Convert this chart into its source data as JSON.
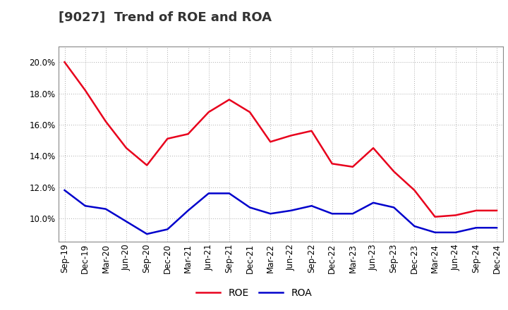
{
  "title": "[9027]  Trend of ROE and ROA",
  "x_labels": [
    "Sep-19",
    "Dec-19",
    "Mar-20",
    "Jun-20",
    "Sep-20",
    "Dec-20",
    "Mar-21",
    "Jun-21",
    "Sep-21",
    "Dec-21",
    "Mar-22",
    "Jun-22",
    "Sep-22",
    "Dec-22",
    "Mar-23",
    "Jun-23",
    "Sep-23",
    "Dec-23",
    "Mar-24",
    "Jun-24",
    "Sep-24",
    "Dec-24"
  ],
  "roe": [
    20.0,
    18.2,
    16.2,
    14.5,
    13.4,
    15.1,
    15.4,
    16.8,
    17.6,
    16.8,
    14.9,
    15.3,
    15.6,
    13.5,
    13.3,
    14.5,
    13.0,
    11.8,
    10.1,
    10.2,
    10.5,
    10.5
  ],
  "roa": [
    11.8,
    10.8,
    10.6,
    9.8,
    9.0,
    9.3,
    10.5,
    11.6,
    11.6,
    10.7,
    10.3,
    10.5,
    10.8,
    10.3,
    10.3,
    11.0,
    10.7,
    9.5,
    9.1,
    9.1,
    9.4,
    9.4
  ],
  "roe_color": "#e8001c",
  "roa_color": "#0000cc",
  "ylim": [
    8.5,
    21.0
  ],
  "yticks": [
    10.0,
    12.0,
    14.0,
    16.0,
    18.0,
    20.0
  ],
  "background_color": "#ffffff",
  "grid_color": "#aaaaaa",
  "title_fontsize": 13,
  "legend_fontsize": 10,
  "tick_fontsize": 8.5
}
